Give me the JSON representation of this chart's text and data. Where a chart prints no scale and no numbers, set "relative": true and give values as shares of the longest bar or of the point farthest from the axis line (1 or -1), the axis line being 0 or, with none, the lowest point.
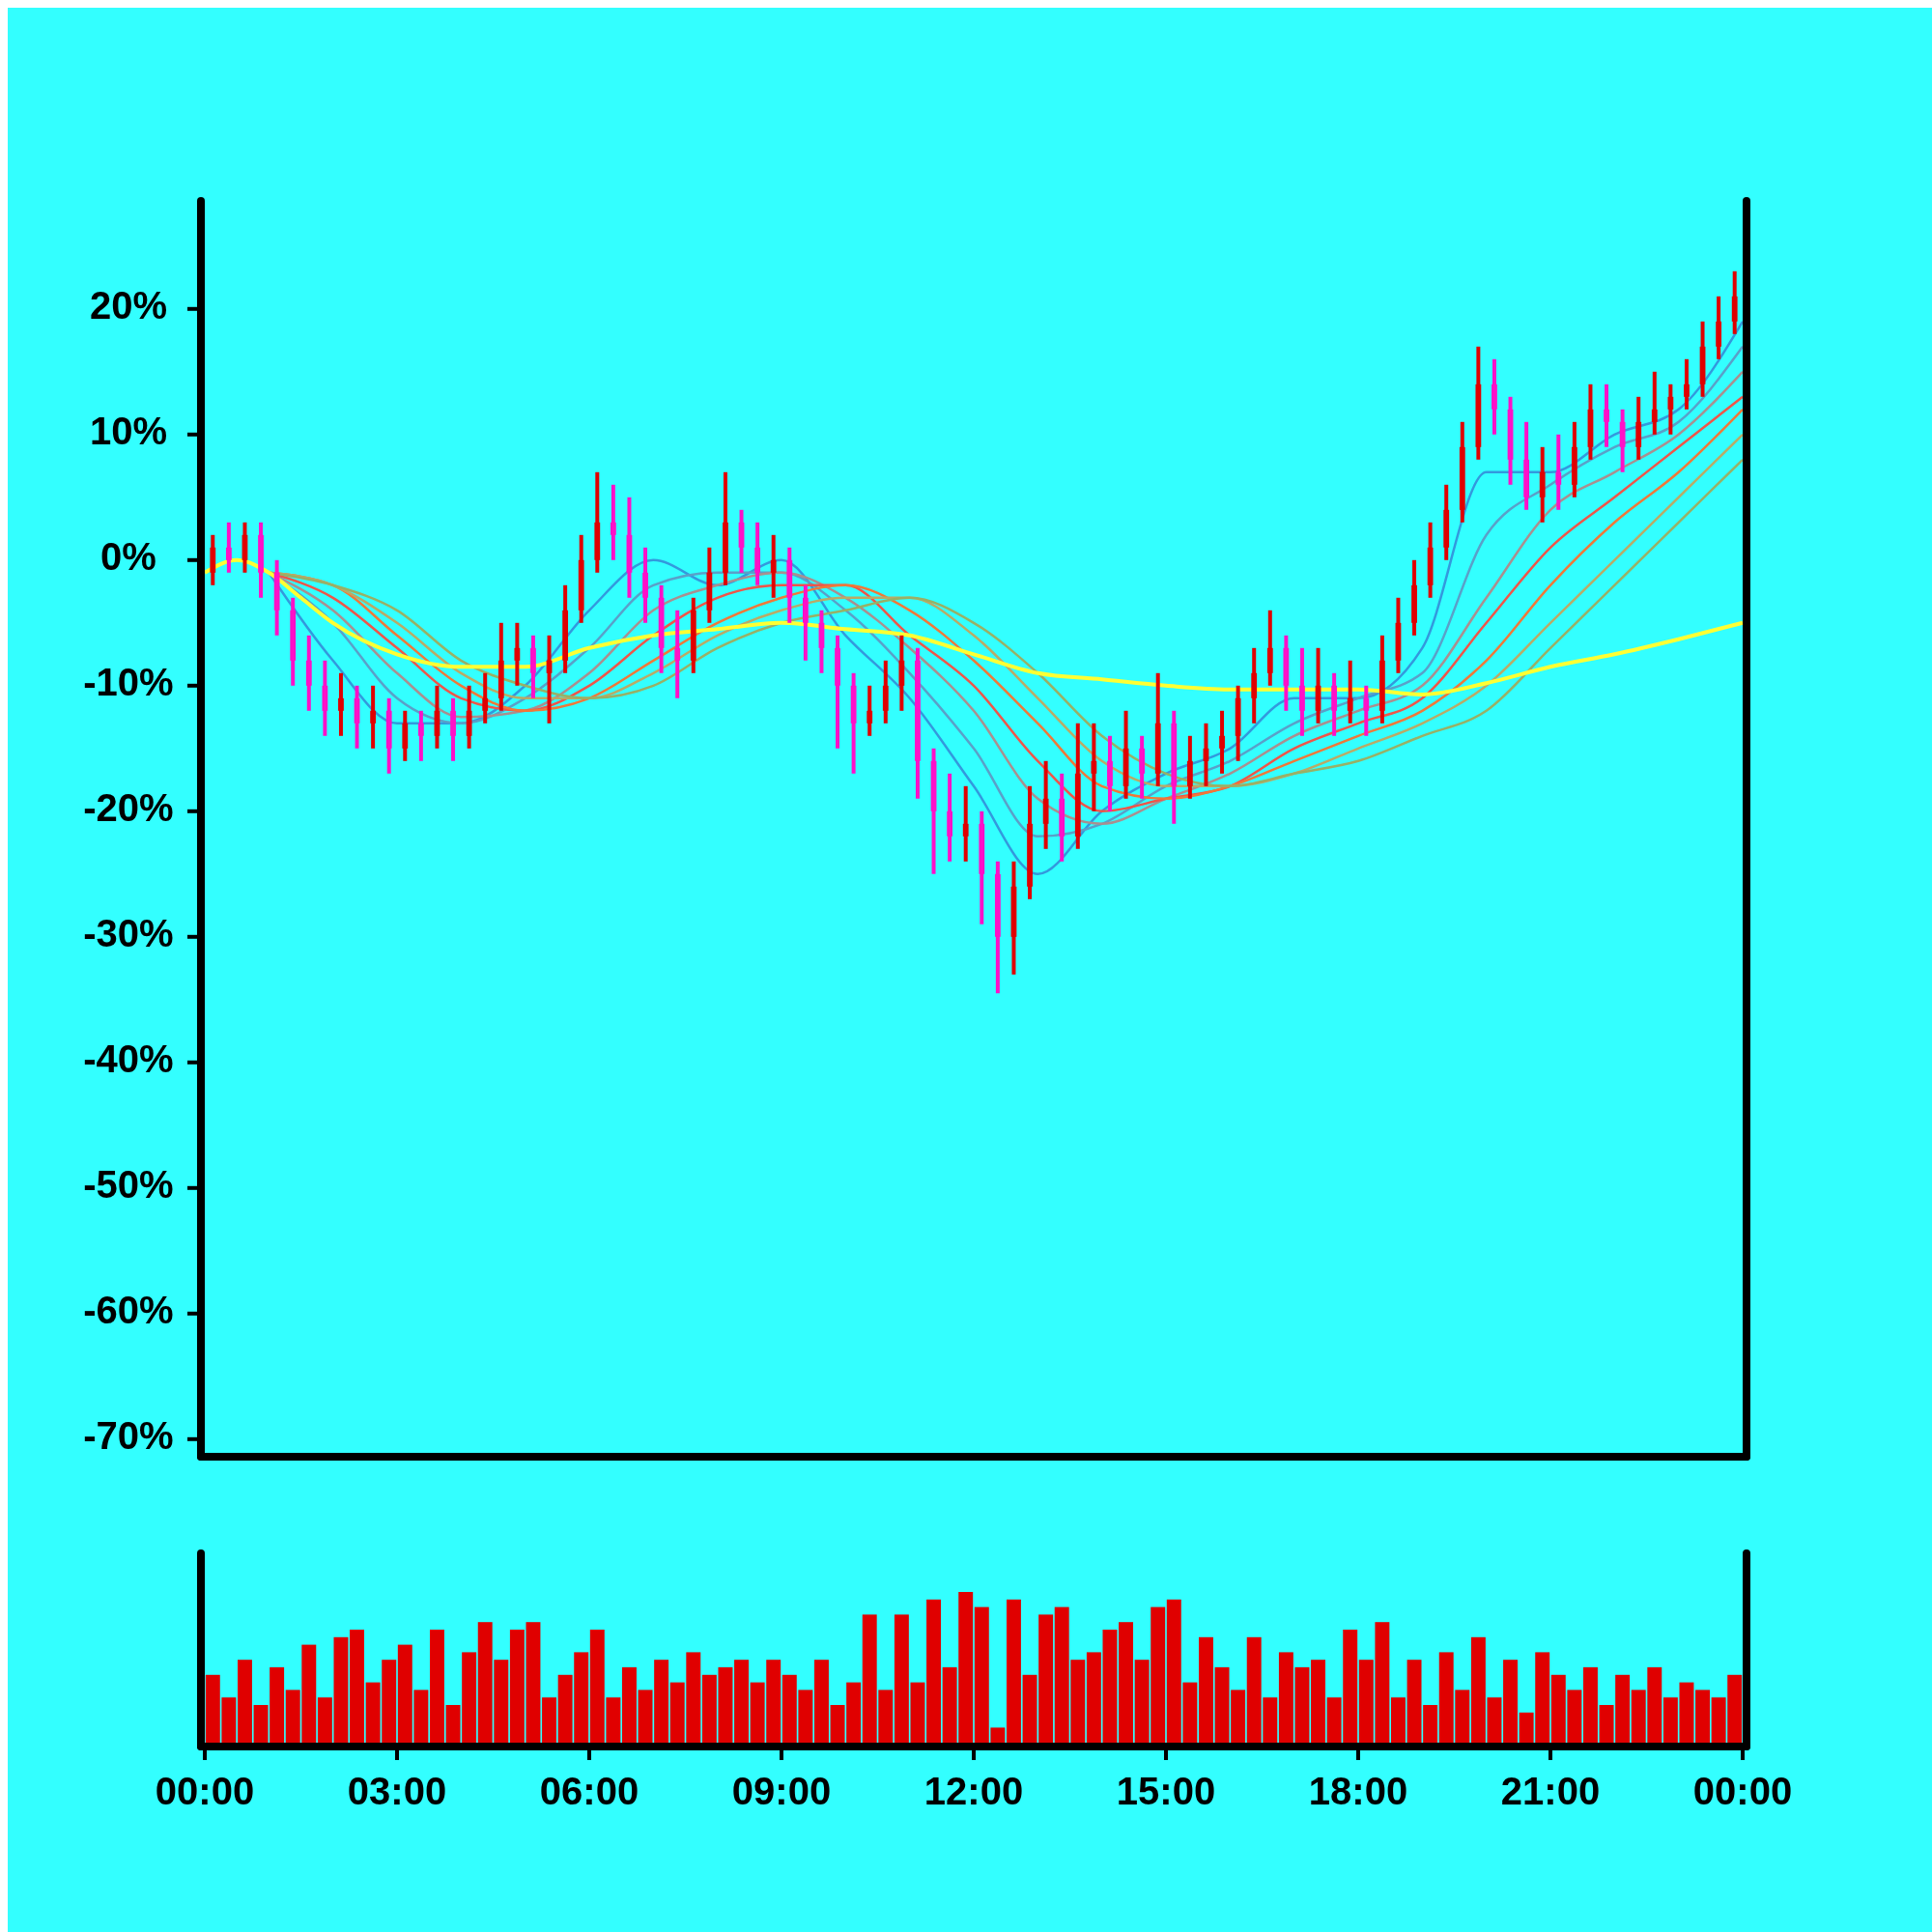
{
  "chart_data": [
    {
      "type": "candlestick",
      "xlim": [
        0,
        24
      ],
      "ylim": [
        -71.4,
        28.6
      ],
      "yticks": [
        {
          "value": -70,
          "label": "-70%"
        },
        {
          "value": -60,
          "label": "-60%"
        },
        {
          "value": -50,
          "label": "-50%"
        },
        {
          "value": -40,
          "label": "-40%"
        },
        {
          "value": -30,
          "label": "-30%"
        },
        {
          "value": -20,
          "label": "-20%"
        },
        {
          "value": -10,
          "label": "-10%"
        },
        {
          "value": 0,
          "label": "0%"
        },
        {
          "value": 10,
          "label": "10%"
        },
        {
          "value": 20,
          "label": "20%"
        }
      ],
      "tick_labels": "y",
      "x": [
        0.125,
        0.375,
        0.625,
        0.875,
        1.125,
        1.375,
        1.625,
        1.875,
        2.125,
        2.375,
        2.625,
        2.875,
        3.125,
        3.375,
        3.625,
        3.875,
        4.125,
        4.375,
        4.625,
        4.875,
        5.125,
        5.375,
        5.625,
        5.875,
        6.125,
        6.375,
        6.625,
        6.875,
        7.125,
        7.375,
        7.625,
        7.875,
        8.125,
        8.375,
        8.625,
        8.875,
        9.125,
        9.375,
        9.625,
        9.875,
        10.125,
        10.375,
        10.625,
        10.875,
        11.125,
        11.375,
        11.625,
        11.875,
        12.125,
        12.375,
        12.625,
        12.875,
        13.125,
        13.375,
        13.625,
        13.875,
        14.125,
        14.375,
        14.625,
        14.875,
        15.125,
        15.375,
        15.625,
        15.875,
        16.125,
        16.375,
        16.625,
        16.875,
        17.125,
        17.375,
        17.625,
        17.875,
        18.125,
        18.375,
        18.625,
        18.875,
        19.125,
        19.375,
        19.625,
        19.875,
        20.125,
        20.375,
        20.625,
        20.875,
        21.125,
        21.375,
        21.625,
        21.875,
        22.125,
        22.375,
        22.625,
        22.875,
        23.125,
        23.375,
        23.625,
        23.875
      ],
      "ohlc": [
        [
          -1,
          2,
          -2,
          1
        ],
        [
          1,
          3,
          -1,
          0
        ],
        [
          0,
          3,
          -1,
          2
        ],
        [
          2,
          3,
          -3,
          -1
        ],
        [
          -1,
          0,
          -6,
          -4
        ],
        [
          -4,
          -3,
          -10,
          -8
        ],
        [
          -8,
          -6,
          -12,
          -10
        ],
        [
          -10,
          -8,
          -14,
          -12
        ],
        [
          -12,
          -9,
          -14,
          -11
        ],
        [
          -11,
          -10,
          -15,
          -13
        ],
        [
          -13,
          -10,
          -15,
          -12
        ],
        [
          -12,
          -11,
          -17,
          -15
        ],
        [
          -15,
          -12,
          -16,
          -13
        ],
        [
          -13,
          -12,
          -16,
          -14
        ],
        [
          -14,
          -10,
          -15,
          -12
        ],
        [
          -12,
          -11,
          -16,
          -14
        ],
        [
          -14,
          -10,
          -15,
          -12
        ],
        [
          -12,
          -9,
          -13,
          -11
        ],
        [
          -11,
          -5,
          -12,
          -8
        ],
        [
          -8,
          -5,
          -10,
          -7
        ],
        [
          -7,
          -6,
          -11,
          -9
        ],
        [
          -9,
          -6,
          -13,
          -8
        ],
        [
          -8,
          -2,
          -9,
          -4
        ],
        [
          -4,
          2,
          -5,
          0
        ],
        [
          0,
          7,
          -1,
          3
        ],
        [
          3,
          6,
          0,
          2
        ],
        [
          2,
          5,
          -3,
          -1
        ],
        [
          -1,
          1,
          -5,
          -3
        ],
        [
          -3,
          -2,
          -9,
          -7
        ],
        [
          -7,
          -4,
          -11,
          -8
        ],
        [
          -8,
          -3,
          -9,
          -4
        ],
        [
          -4,
          1,
          -5,
          -1
        ],
        [
          -1,
          7,
          -2,
          3
        ],
        [
          3,
          4,
          -1,
          1
        ],
        [
          1,
          3,
          -2,
          -1
        ],
        [
          -1,
          2,
          -3,
          0
        ],
        [
          0,
          1,
          -5,
          -3
        ],
        [
          -3,
          -2,
          -8,
          -5
        ],
        [
          -5,
          -4,
          -9,
          -7
        ],
        [
          -7,
          -6,
          -15,
          -10
        ],
        [
          -10,
          -9,
          -17,
          -13
        ],
        [
          -13,
          -10,
          -14,
          -12
        ],
        [
          -12,
          -8,
          -13,
          -10
        ],
        [
          -10,
          -6,
          -12,
          -8
        ],
        [
          -8,
          -7,
          -19,
          -16
        ],
        [
          -16,
          -15,
          -25,
          -20
        ],
        [
          -20,
          -17,
          -24,
          -22
        ],
        [
          -22,
          -18,
          -24,
          -21
        ],
        [
          -21,
          -20,
          -29,
          -25
        ],
        [
          -25,
          -24,
          -34.5,
          -30
        ],
        [
          -30,
          -24,
          -33,
          -26
        ],
        [
          -26,
          -18,
          -27,
          -21
        ],
        [
          -21,
          -16,
          -23,
          -19
        ],
        [
          -19,
          -17,
          -24,
          -22
        ],
        [
          -22,
          -13,
          -23,
          -17
        ],
        [
          -17,
          -13,
          -20,
          -16
        ],
        [
          -16,
          -14,
          -20,
          -18
        ],
        [
          -18,
          -12,
          -19,
          -15
        ],
        [
          -15,
          -14,
          -19,
          -17
        ],
        [
          -17,
          -9,
          -18,
          -13
        ],
        [
          -13,
          -12,
          -21,
          -18
        ],
        [
          -18,
          -14,
          -19,
          -16
        ],
        [
          -16,
          -13,
          -18,
          -15
        ],
        [
          -15,
          -12,
          -17,
          -14
        ],
        [
          -14,
          -10,
          -16,
          -11
        ],
        [
          -11,
          -7,
          -13,
          -9
        ],
        [
          -9,
          -4,
          -10,
          -7
        ],
        [
          -7,
          -6,
          -12,
          -10
        ],
        [
          -10,
          -7,
          -14,
          -12
        ],
        [
          -12,
          -7,
          -13,
          -10
        ],
        [
          -10,
          -9,
          -14,
          -12
        ],
        [
          -12,
          -8,
          -13,
          -11
        ],
        [
          -11,
          -10,
          -14,
          -12
        ],
        [
          -12,
          -6,
          -13,
          -8
        ],
        [
          -8,
          -3,
          -9,
          -5
        ],
        [
          -5,
          0,
          -6,
          -2
        ],
        [
          -2,
          3,
          -3,
          1
        ],
        [
          1,
          6,
          0,
          4
        ],
        [
          4,
          11,
          3,
          9
        ],
        [
          9,
          17,
          8,
          14
        ],
        [
          14,
          16,
          10,
          12
        ],
        [
          12,
          13,
          6,
          8
        ],
        [
          8,
          11,
          4,
          5
        ],
        [
          5,
          9,
          3,
          7
        ],
        [
          7,
          10,
          4,
          6
        ],
        [
          6,
          11,
          5,
          9
        ],
        [
          9,
          14,
          8,
          12
        ],
        [
          12,
          14,
          9,
          11
        ],
        [
          11,
          12,
          7,
          9
        ],
        [
          9,
          13,
          8,
          11
        ],
        [
          11,
          15,
          10,
          12
        ],
        [
          12,
          14,
          10,
          13
        ],
        [
          13,
          16,
          12,
          14
        ],
        [
          14,
          19,
          13,
          17
        ],
        [
          17,
          21,
          16,
          19
        ],
        [
          19,
          23,
          18,
          21
        ]
      ],
      "colors": [
        "#e00000",
        "#ff10c8",
        "#e00000",
        "#ff10c8",
        "#ff10c8",
        "#ff10c8",
        "#ff10c8",
        "#ff10c8",
        "#e00000",
        "#ff10c8",
        "#e00000",
        "#ff10c8",
        "#e00000",
        "#ff10c8",
        "#e00000",
        "#ff10c8",
        "#e00000",
        "#e00000",
        "#e00000",
        "#e00000",
        "#ff10c8",
        "#e00000",
        "#e00000",
        "#e00000",
        "#e00000",
        "#ff10c8",
        "#ff10c8",
        "#ff10c8",
        "#ff10c8",
        "#ff10c8",
        "#e00000",
        "#e00000",
        "#e00000",
        "#ff10c8",
        "#ff10c8",
        "#e00000",
        "#ff10c8",
        "#ff10c8",
        "#ff10c8",
        "#ff10c8",
        "#ff10c8",
        "#e00000",
        "#e00000",
        "#e00000",
        "#ff10c8",
        "#ff10c8",
        "#ff10c8",
        "#e00000",
        "#ff10c8",
        "#ff10c8",
        "#e00000",
        "#e00000",
        "#e00000",
        "#ff10c8",
        "#e00000",
        "#e00000",
        "#ff10c8",
        "#e00000",
        "#ff10c8",
        "#e00000",
        "#ff10c8",
        "#e00000",
        "#e00000",
        "#e00000",
        "#e00000",
        "#e00000",
        "#e00000",
        "#ff10c8",
        "#ff10c8",
        "#e00000",
        "#ff10c8",
        "#e00000",
        "#ff10c8",
        "#e00000",
        "#e00000",
        "#e00000",
        "#e00000",
        "#e00000",
        "#e00000",
        "#e00000",
        "#ff10c8",
        "#ff10c8",
        "#ff10c8",
        "#e00000",
        "#ff10c8",
        "#e00000",
        "#e00000",
        "#ff10c8",
        "#ff10c8",
        "#e00000",
        "#e00000",
        "#e00000",
        "#e00000",
        "#e00000",
        "#e00000",
        "#e00000"
      ],
      "series": [
        {
          "type": "line",
          "color": "#3399dd",
          "x": [
            1,
            2,
            3,
            4,
            5,
            6,
            7,
            8,
            9,
            10,
            11,
            12,
            13,
            14,
            15,
            16,
            17,
            18,
            19,
            20,
            21,
            22,
            23,
            24
          ],
          "values": [
            -1,
            -8,
            -13,
            -13,
            -10,
            -4,
            0,
            -2,
            0,
            -6,
            -11,
            -18,
            -25,
            -20,
            -17,
            -15,
            -11,
            -11,
            -7,
            7,
            7,
            10,
            12,
            19
          ]
        },
        {
          "type": "line",
          "color": "#5aa0c8",
          "x": [
            1,
            2,
            3,
            4,
            5,
            6,
            7,
            8,
            9,
            10,
            11,
            12,
            13,
            14,
            15,
            16,
            17,
            18,
            19,
            20,
            21,
            22,
            23,
            24
          ],
          "values": [
            -1,
            -5,
            -11,
            -13,
            -11,
            -7,
            -2,
            -1,
            -1,
            -4,
            -9,
            -15,
            -22,
            -21,
            -18,
            -16,
            -13,
            -11,
            -9,
            2,
            6,
            9,
            11,
            17
          ]
        },
        {
          "type": "line",
          "color": "#aa8f8f",
          "x": [
            1,
            2,
            3,
            4,
            5,
            6,
            7,
            8,
            9,
            10,
            11,
            12,
            13,
            14,
            15,
            16,
            17,
            18,
            19,
            20,
            21,
            22,
            23,
            24
          ],
          "values": [
            -1,
            -4,
            -9,
            -12.5,
            -12,
            -9,
            -4,
            -2,
            -1,
            -3,
            -7,
            -12,
            -19,
            -21,
            -19,
            -17,
            -14,
            -12,
            -10,
            -3,
            4,
            7,
            10,
            15
          ]
        },
        {
          "type": "line",
          "color": "#f05548",
          "x": [
            1,
            2,
            3,
            4,
            5,
            6,
            7,
            8,
            9,
            10,
            11,
            12,
            13,
            14,
            15,
            16,
            17,
            18,
            19,
            20,
            21,
            22,
            23,
            24
          ],
          "values": [
            -1,
            -3,
            -7,
            -11,
            -12,
            -10,
            -6,
            -3,
            -2,
            -2,
            -6,
            -10,
            -16,
            -20,
            -19,
            -18,
            -15,
            -13,
            -11,
            -5,
            1,
            5,
            9,
            13
          ]
        },
        {
          "type": "line",
          "color": "#f07838",
          "x": [
            1,
            2,
            3,
            4,
            5,
            6,
            7,
            8,
            9,
            10,
            11,
            12,
            13,
            14,
            15,
            16,
            17,
            18,
            19,
            20,
            21,
            22,
            23,
            24
          ],
          "values": [
            -1,
            -2,
            -6,
            -10,
            -12,
            -11,
            -8,
            -5,
            -3,
            -2,
            -4,
            -8,
            -13,
            -18,
            -19,
            -18,
            -16,
            -14,
            -12,
            -8,
            -2,
            3,
            7,
            12
          ]
        },
        {
          "type": "line",
          "color": "#bbaa66",
          "x": [
            1,
            2,
            3,
            4,
            5,
            6,
            7,
            8,
            9,
            10,
            11,
            12,
            13,
            14,
            15,
            16,
            17,
            18,
            19,
            20,
            21,
            22,
            23,
            24
          ],
          "values": [
            -1,
            -2,
            -5,
            -9,
            -11,
            -11,
            -9,
            -6,
            -4,
            -3,
            -3,
            -6,
            -11,
            -16,
            -18,
            -18,
            -17,
            -15,
            -13,
            -10,
            -5,
            0,
            5,
            10
          ]
        },
        {
          "type": "line",
          "color": "#99b066",
          "x": [
            1,
            2,
            3,
            4,
            5,
            6,
            7,
            8,
            9,
            10,
            11,
            12,
            13,
            14,
            15,
            16,
            17,
            18,
            19,
            20,
            21,
            22,
            23,
            24
          ],
          "values": [
            -1,
            -2,
            -4,
            -8,
            -10,
            -11,
            -10,
            -7,
            -5,
            -4,
            -3,
            -5,
            -9,
            -14,
            -17,
            -18,
            -17,
            -16,
            -14,
            -12,
            -7,
            -2,
            3,
            8
          ]
        },
        {
          "type": "line",
          "color": "#ffff33",
          "x": [
            0,
            0.5,
            1,
            1.5,
            2,
            3,
            4,
            5,
            6,
            7,
            8,
            9,
            10,
            11,
            12,
            13,
            14,
            15,
            16,
            17,
            18,
            19,
            20,
            21,
            22,
            23,
            24
          ],
          "values": [
            -1,
            0,
            -1,
            -3,
            -5,
            -7.5,
            -8.5,
            -8.5,
            -7,
            -6,
            -5.5,
            -5,
            -5.5,
            -6,
            -7.5,
            -9,
            -9.5,
            -10,
            -10.3,
            -10.3,
            -10.3,
            -10.7,
            -9.8,
            -8.5,
            -7.5,
            -6.3,
            -5
          ]
        }
      ]
    },
    {
      "type": "bar",
      "relative": true,
      "color": "#e00000",
      "xlim": [
        0,
        24
      ],
      "tick_labels": "x",
      "xticks": [
        {
          "value": 0,
          "label": "00:00"
        },
        {
          "value": 3,
          "label": "03:00"
        },
        {
          "value": 6,
          "label": "06:00"
        },
        {
          "value": 9,
          "label": "09:00"
        },
        {
          "value": 12,
          "label": "12:00"
        },
        {
          "value": 15,
          "label": "15:00"
        },
        {
          "value": 18,
          "label": "18:00"
        },
        {
          "value": 21,
          "label": "21:00"
        },
        {
          "value": 24,
          "label": "00:00"
        }
      ],
      "x": [
        0.125,
        0.375,
        0.625,
        0.875,
        1.125,
        1.375,
        1.625,
        1.875,
        2.125,
        2.375,
        2.625,
        2.875,
        3.125,
        3.375,
        3.625,
        3.875,
        4.125,
        4.375,
        4.625,
        4.875,
        5.125,
        5.375,
        5.625,
        5.875,
        6.125,
        6.375,
        6.625,
        6.875,
        7.125,
        7.375,
        7.625,
        7.875,
        8.125,
        8.375,
        8.625,
        8.875,
        9.125,
        9.375,
        9.625,
        9.875,
        10.125,
        10.375,
        10.625,
        10.875,
        11.125,
        11.375,
        11.625,
        11.875,
        12.125,
        12.375,
        12.625,
        12.875,
        13.125,
        13.375,
        13.625,
        13.875,
        14.125,
        14.375,
        14.625,
        14.875,
        15.125,
        15.375,
        15.625,
        15.875,
        16.125,
        16.375,
        16.625,
        16.875,
        17.125,
        17.375,
        17.625,
        17.875,
        18.125,
        18.375,
        18.625,
        18.875,
        19.125,
        19.375,
        19.625,
        19.875,
        20.125,
        20.375,
        20.625,
        20.875,
        21.125,
        21.375,
        21.625,
        21.875,
        22.125,
        22.375,
        22.625,
        22.875,
        23.125,
        23.375,
        23.625,
        23.875
      ],
      "values": [
        0.45,
        0.3,
        0.55,
        0.25,
        0.5,
        0.35,
        0.65,
        0.3,
        0.7,
        0.75,
        0.4,
        0.55,
        0.65,
        0.35,
        0.75,
        0.25,
        0.6,
        0.8,
        0.55,
        0.75,
        0.8,
        0.3,
        0.45,
        0.6,
        0.75,
        0.3,
        0.5,
        0.35,
        0.55,
        0.4,
        0.6,
        0.45,
        0.5,
        0.55,
        0.4,
        0.55,
        0.45,
        0.35,
        0.55,
        0.25,
        0.4,
        0.85,
        0.35,
        0.85,
        0.4,
        0.95,
        0.5,
        1.0,
        0.9,
        0.1,
        0.95,
        0.45,
        0.85,
        0.9,
        0.55,
        0.6,
        0.75,
        0.8,
        0.55,
        0.9,
        0.95,
        0.4,
        0.7,
        0.5,
        0.35,
        0.7,
        0.3,
        0.6,
        0.5,
        0.55,
        0.3,
        0.75,
        0.55,
        0.8,
        0.3,
        0.55,
        0.25,
        0.6,
        0.35,
        0.7,
        0.3,
        0.55,
        0.2,
        0.6,
        0.45,
        0.35,
        0.5,
        0.25,
        0.45,
        0.35,
        0.5,
        0.3,
        0.4,
        0.35,
        0.3,
        0.45
      ]
    }
  ]
}
